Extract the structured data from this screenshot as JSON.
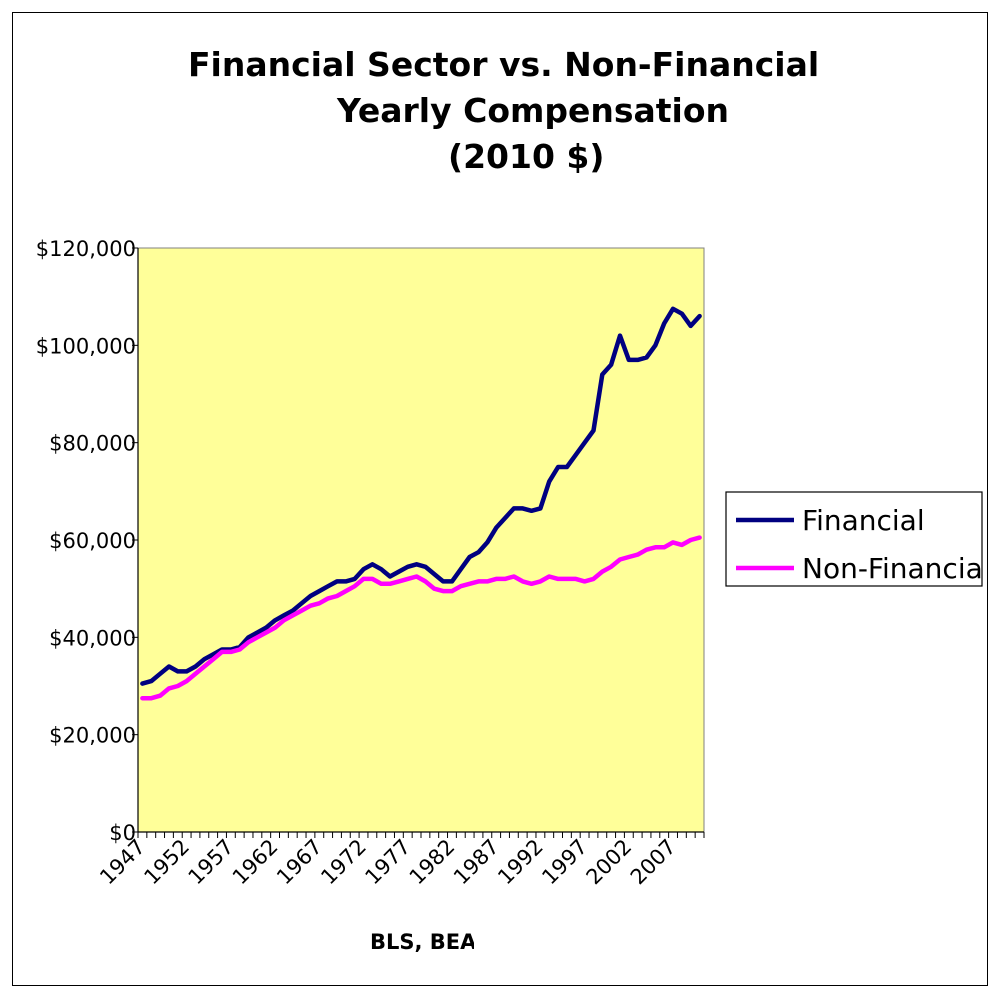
{
  "chart_data": {
    "type": "line",
    "title_lines": [
      "Financial Sector vs. Non-Financial",
      "Yearly Compensation",
      "(2010 $)"
    ],
    "xlabel": "",
    "ylabel": "",
    "ylim": [
      0,
      120000
    ],
    "yticks": [
      0,
      20000,
      40000,
      60000,
      80000,
      100000,
      120000
    ],
    "ytick_labels": [
      "$0",
      "$20,000",
      "$40,000",
      "$60,000",
      "$80,000",
      "$100,000",
      "$120,000"
    ],
    "xticks_labels": [
      "1947",
      "1952",
      "1957",
      "1962",
      "1967",
      "1972",
      "1977",
      "1982",
      "1987",
      "1992",
      "1997",
      "2002",
      "2007"
    ],
    "x": [
      1947,
      1948,
      1949,
      1950,
      1951,
      1952,
      1953,
      1954,
      1955,
      1956,
      1957,
      1958,
      1959,
      1960,
      1961,
      1962,
      1963,
      1964,
      1965,
      1966,
      1967,
      1968,
      1969,
      1970,
      1971,
      1972,
      1973,
      1974,
      1975,
      1976,
      1977,
      1978,
      1979,
      1980,
      1981,
      1982,
      1983,
      1984,
      1985,
      1986,
      1987,
      1988,
      1989,
      1990,
      1991,
      1992,
      1993,
      1994,
      1995,
      1996,
      1997,
      1998,
      1999,
      2000,
      2001,
      2002,
      2003,
      2004,
      2005,
      2006,
      2007,
      2008,
      2009,
      2010
    ],
    "series": [
      {
        "name": "Financial",
        "color": "#000080",
        "values": [
          30500,
          31000,
          32500,
          34000,
          33000,
          33000,
          34000,
          35500,
          36500,
          37500,
          37500,
          38000,
          40000,
          41000,
          42000,
          43500,
          44500,
          45500,
          47000,
          48500,
          49500,
          50500,
          51500,
          51500,
          52000,
          54000,
          55000,
          54000,
          52500,
          53500,
          54500,
          55000,
          54500,
          53000,
          51500,
          51500,
          54000,
          56500,
          57500,
          59500,
          62500,
          64500,
          66500,
          66500,
          66000,
          66500,
          72000,
          75000,
          75000,
          77500,
          80000,
          82500,
          94000,
          96000,
          102000,
          97000,
          97000,
          97500,
          100000,
          104500,
          107500,
          106500,
          104000,
          106000
        ]
      },
      {
        "name": "Non-Financial",
        "color": "#ff00ff",
        "values": [
          27500,
          27500,
          28000,
          29500,
          30000,
          31000,
          32500,
          34000,
          35500,
          37000,
          37000,
          37500,
          39000,
          40000,
          41000,
          42000,
          43500,
          44500,
          45500,
          46500,
          47000,
          48000,
          48500,
          49500,
          50500,
          52000,
          52000,
          51000,
          51000,
          51500,
          52000,
          52500,
          51500,
          50000,
          49500,
          49500,
          50500,
          51000,
          51500,
          51500,
          52000,
          52000,
          52500,
          51500,
          51000,
          51500,
          52500,
          52000,
          52000,
          52000,
          51500,
          52000,
          53500,
          54500,
          56000,
          56500,
          57000,
          58000,
          58500,
          58500,
          59500,
          59000,
          60000,
          60500
        ]
      }
    ],
    "legend_placement": "right",
    "plot_background": "#ffff99",
    "grid": false
  },
  "source_label": "BLS, BEA"
}
